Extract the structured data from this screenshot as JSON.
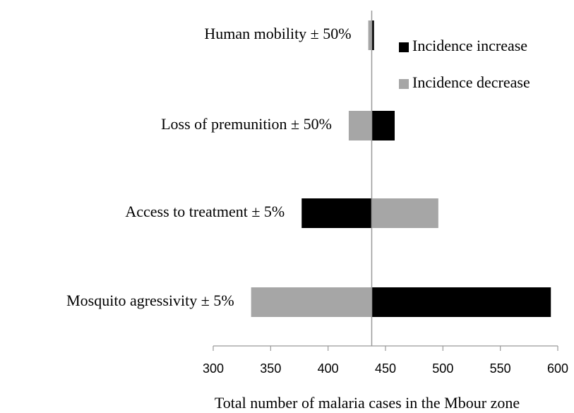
{
  "chart_data": {
    "type": "tornado",
    "categories": [
      "Human mobility ± 50%",
      "Loss of premunition ± 50%",
      "Access to treatment ± 5%",
      "Mosquito agressivity ± 5%"
    ],
    "base": 438,
    "series": [
      {
        "name": "Incidence increase",
        "color": "#000000",
        "values": [
          440,
          458,
          377,
          594
        ]
      },
      {
        "name": "Incidence decrease",
        "color": "#a6a6a6",
        "values": [
          435,
          418,
          496,
          333
        ]
      }
    ],
    "xlabel": "Total number of malaria cases in the Mbour zone",
    "xlim": [
      300,
      600
    ],
    "xticks": [
      300,
      350,
      400,
      450,
      500,
      550,
      600
    ],
    "legend": "top-right"
  }
}
